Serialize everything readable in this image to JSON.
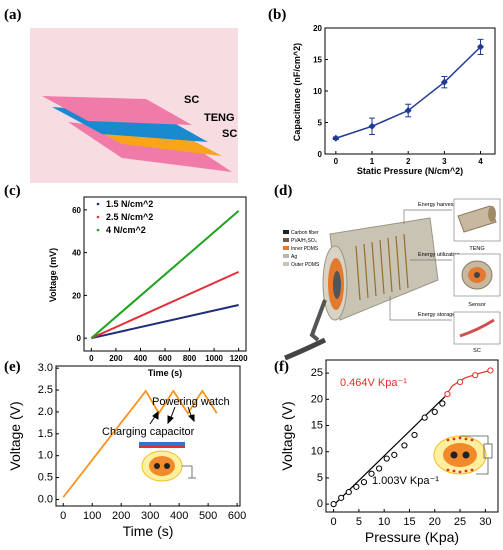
{
  "panels": {
    "a": {
      "letter": "(a)",
      "layers": [
        "SC",
        "TENG",
        "SC"
      ]
    },
    "b": {
      "letter": "(b)"
    },
    "c": {
      "letter": "(c)"
    },
    "d": {
      "letter": "(d)",
      "legend": [
        "Carbon fiber",
        "PVA/H₂SO₄",
        "Inner PDMS",
        "Ag",
        "Outer PDMS"
      ],
      "callouts": [
        "Energy harvest",
        "Energy utilization",
        "Energy storage"
      ],
      "insets": [
        "TENG",
        "Sensor",
        "SC"
      ]
    },
    "e": {
      "letter": "(e)",
      "annotations": [
        "Powering watch",
        "Charging capacitor"
      ]
    },
    "f": {
      "letter": "(f)",
      "annotations": [
        "0.464V Kpa⁻¹",
        "1.003V Kpa⁻¹"
      ]
    }
  },
  "colors": {
    "a_pink": "#f07aa8",
    "a_blue": "#1a8ad0",
    "a_orange": "#f8a51c",
    "a_bg": "#f7dce2",
    "b_line": "#1f3a93",
    "c_green": "#1fa31f",
    "c_red": "#e0303a",
    "c_navy": "#1f2d7a",
    "e_orange": "#f7941d",
    "f_red": "#e0302a"
  },
  "chart_data": [
    {
      "id": "b",
      "type": "line",
      "xlabel": "Static Pressure (N/cm^2)",
      "ylabel": "Capacitance (nF/cm^2)",
      "x": [
        0,
        1,
        2,
        3,
        4
      ],
      "y": [
        2.5,
        4.4,
        6.9,
        11.4,
        17.0
      ],
      "yerr": [
        0.2,
        1.3,
        1.0,
        0.9,
        1.2
      ],
      "xlim": [
        -0.3,
        4.4
      ],
      "ylim": [
        0,
        20
      ],
      "xticks": [
        0,
        1,
        2,
        3,
        4
      ],
      "yticks": [
        0,
        5,
        10,
        15,
        20
      ]
    },
    {
      "id": "c",
      "type": "line",
      "xlabel": "Time (s)",
      "ylabel": "Voltage (mV)",
      "xlim": [
        -60,
        1260
      ],
      "ylim": [
        -6,
        66
      ],
      "xticks": [
        0,
        200,
        400,
        600,
        800,
        1000,
        1200
      ],
      "yticks": [
        0,
        20,
        40,
        60
      ],
      "legend_position": "top-left",
      "series": [
        {
          "name": "1.5 N/cm^2",
          "color": "#1f2d7a",
          "x": [
            0,
            1200
          ],
          "y": [
            0,
            15.5
          ]
        },
        {
          "name": "2.5 N/cm^2",
          "color": "#e0303a",
          "x": [
            0,
            1200
          ],
          "y": [
            0,
            31
          ]
        },
        {
          "name": "4 N/cm^2",
          "color": "#1fa31f",
          "x": [
            0,
            1200
          ],
          "y": [
            0,
            59.5
          ]
        }
      ]
    },
    {
      "id": "e",
      "type": "line",
      "xlabel": "Time (s)",
      "ylabel": "Voltage (V)",
      "xlim": [
        -25,
        610
      ],
      "ylim": [
        -0.15,
        3.05
      ],
      "xticks": [
        0,
        100,
        200,
        300,
        400,
        500,
        600
      ],
      "yticks": [
        0.0,
        0.5,
        1.0,
        1.5,
        2.0,
        2.5,
        3.0
      ],
      "series": [
        {
          "name": "",
          "color": "#f7941d",
          "x": [
            0,
            285,
            330,
            380,
            430,
            480,
            530
          ],
          "y": [
            0.05,
            2.48,
            1.97,
            2.48,
            1.97,
            2.48,
            1.97
          ]
        }
      ]
    },
    {
      "id": "f",
      "type": "scatter",
      "xlabel": "Pressure (Kpa)",
      "ylabel": "Voltage (V)",
      "xlim": [
        -1.5,
        32.5
      ],
      "ylim": [
        -1.5,
        27.5
      ],
      "xticks": [
        0,
        5,
        10,
        15,
        20,
        25,
        30
      ],
      "yticks": [
        0,
        5,
        10,
        15,
        20,
        25
      ],
      "series": [
        {
          "name": "",
          "color": "#000000",
          "x": [
            0,
            1.5,
            3,
            4.5,
            6,
            7.5,
            9,
            10.5,
            12,
            14,
            16,
            18,
            20,
            21.5
          ],
          "y": [
            0,
            1.2,
            2.3,
            3.3,
            4.2,
            5.8,
            6.8,
            8.7,
            9.4,
            11.2,
            13.2,
            16.5,
            17.6,
            19.2
          ]
        },
        {
          "name": "",
          "color": "#e0302a",
          "x": [
            22.5,
            25,
            28,
            31
          ],
          "y": [
            21.0,
            23.3,
            24.6,
            25.5
          ]
        }
      ],
      "fit_low": {
        "x": [
          0,
          22
        ],
        "y": [
          -0.2,
          20.5
        ]
      },
      "fit_high": {
        "x": [
          22,
          23.5,
          26,
          29,
          31
        ],
        "y": [
          20.5,
          22.6,
          24.1,
          25.0,
          25.5
        ]
      }
    }
  ]
}
